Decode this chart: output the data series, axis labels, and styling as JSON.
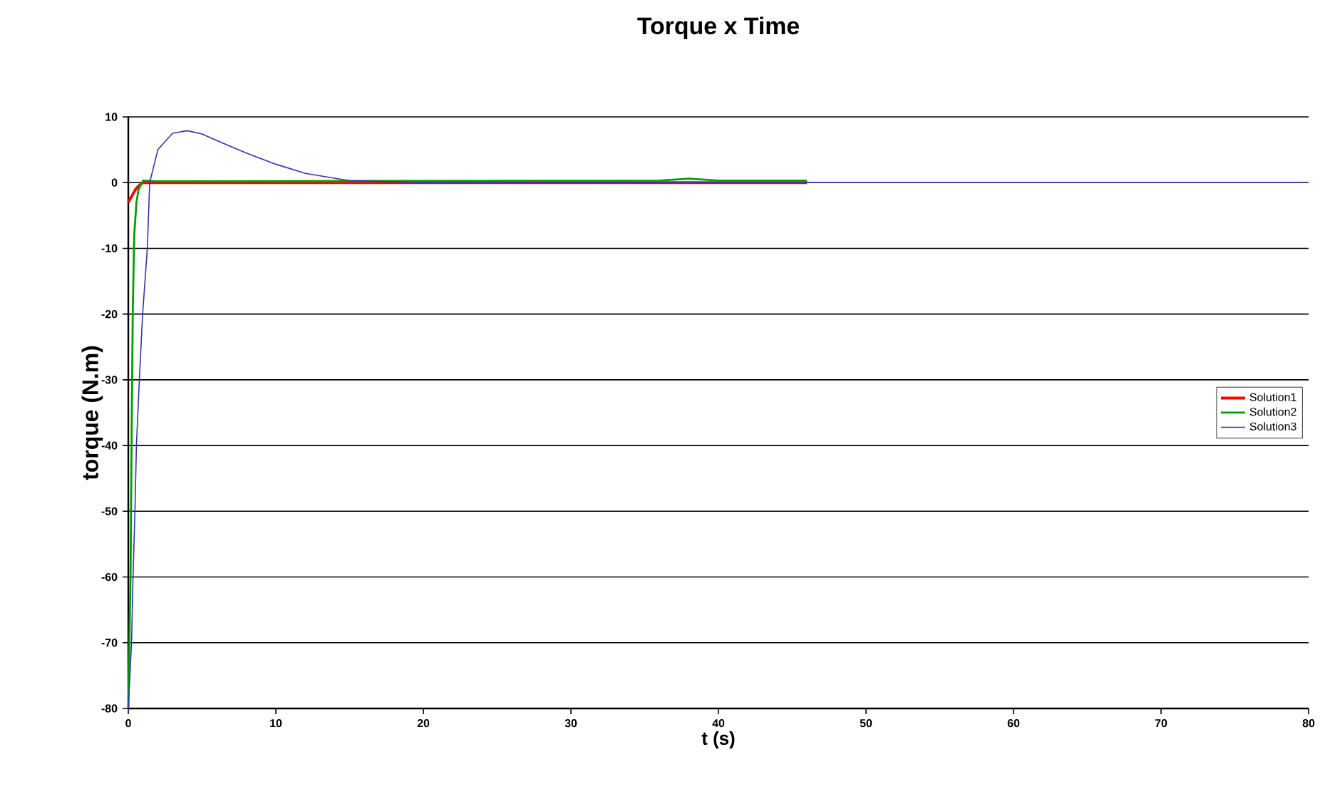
{
  "chart_data": {
    "type": "line",
    "title": "Torque x Time",
    "xlabel": "t (s)",
    "ylabel": "torque (N.m)",
    "xlim": [
      0,
      80
    ],
    "ylim": [
      -80,
      10
    ],
    "xticks": [
      0,
      10,
      20,
      30,
      40,
      50,
      60,
      70,
      80
    ],
    "yticks": [
      -80,
      -70,
      -60,
      -50,
      -40,
      -30,
      -20,
      -10,
      0,
      10
    ],
    "grid": "y",
    "legend": "right",
    "marker": "none",
    "line_style": "solid",
    "series": [
      {
        "name": "Solution1",
        "color": "#ff0000",
        "x": [
          0,
          0.25,
          0.5,
          0.75,
          1,
          2,
          46
        ],
        "values": [
          -3,
          -2,
          -1,
          -0.4,
          0,
          0,
          0
        ]
      },
      {
        "name": "Solution2",
        "color": "#00a000",
        "x": [
          0,
          0.15,
          0.22,
          0.3,
          0.4,
          0.55,
          0.7,
          1,
          2,
          36,
          38,
          40,
          46
        ],
        "values": [
          -80,
          -60,
          -40,
          -20,
          -8,
          -3,
          -1,
          0.3,
          0.2,
          0.3,
          0.6,
          0.3,
          0.3
        ]
      },
      {
        "name": "Solution3",
        "color": "#3333aa",
        "x": [
          0,
          0.22,
          0.32,
          0.45,
          0.55,
          0.75,
          0.97,
          1.29,
          1.45,
          2,
          3,
          4,
          5,
          6,
          8,
          10,
          12,
          15,
          20,
          80
        ],
        "values": [
          -80,
          -70,
          -60,
          -50,
          -40,
          -30,
          -20,
          -10,
          0,
          5,
          7.5,
          7.9,
          7.4,
          6.4,
          4.5,
          2.8,
          1.4,
          0.3,
          0,
          0
        ]
      }
    ]
  }
}
